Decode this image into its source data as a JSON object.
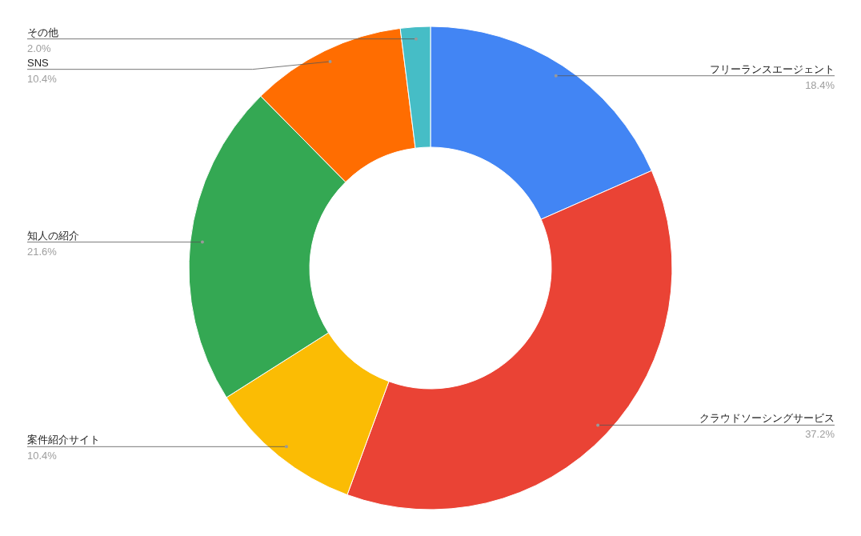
{
  "chart_data": {
    "type": "donut",
    "categories": [
      "フリーランスエージェント",
      "クラウドソーシングサービス",
      "案件紹介サイト",
      "知人の紹介",
      "SNS",
      "その他"
    ],
    "values": [
      18.4,
      37.2,
      10.4,
      21.6,
      10.4,
      2.0
    ],
    "colors": [
      "#4285f4",
      "#ea4335",
      "#fbbc04",
      "#34a853",
      "#ff6d01",
      "#46bdc6"
    ],
    "value_labels": [
      "18.4%",
      "37.2%",
      "10.4%",
      "21.6%",
      "10.4%",
      "2.0%"
    ]
  }
}
